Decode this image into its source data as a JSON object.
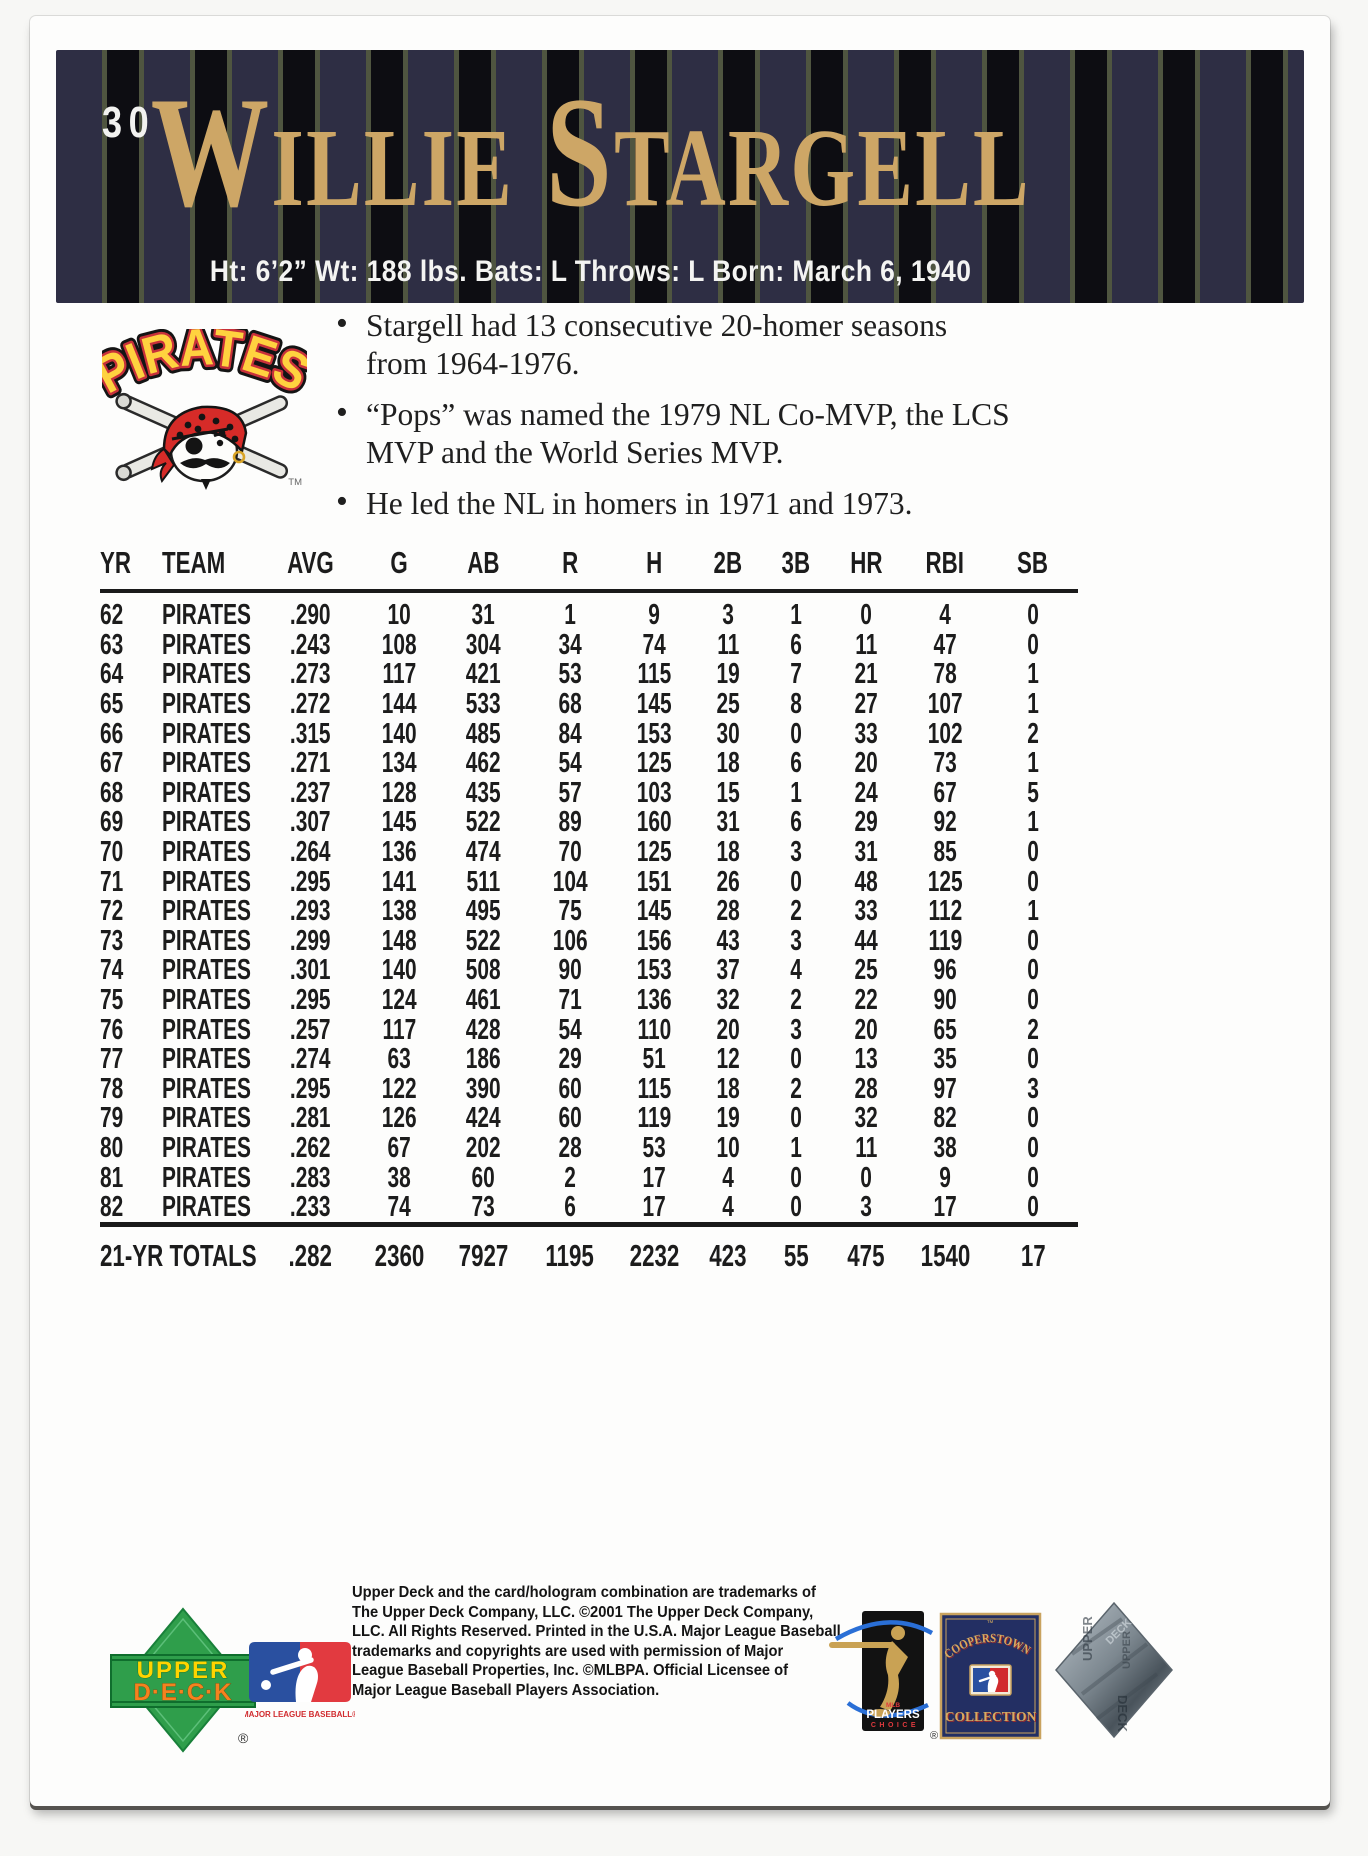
{
  "header": {
    "card_number": "30",
    "player_name": "Willie Stargell",
    "bio_line": "Ht: 6’2” Wt: 188 lbs. Bats: L Throws: L Born: March 6, 1940"
  },
  "team": {
    "logo_text": "PIRATES",
    "trademark": "TM"
  },
  "highlights": [
    "Stargell had 13 consecutive 20-homer seasons from 1964-1976.",
    "“Pops” was named the 1979 NL Co-MVP, the LCS MVP and the World Series MVP.",
    "He led the NL in homers in 1971 and 1973."
  ],
  "stats": {
    "columns": [
      "YR",
      "TEAM",
      "AVG",
      "G",
      "AB",
      "R",
      "H",
      "2B",
      "3B",
      "HR",
      "RBI",
      "SB"
    ],
    "rows": [
      [
        "62",
        "PIRATES",
        ".290",
        "10",
        "31",
        "1",
        "9",
        "3",
        "1",
        "0",
        "4",
        "0"
      ],
      [
        "63",
        "PIRATES",
        ".243",
        "108",
        "304",
        "34",
        "74",
        "11",
        "6",
        "11",
        "47",
        "0"
      ],
      [
        "64",
        "PIRATES",
        ".273",
        "117",
        "421",
        "53",
        "115",
        "19",
        "7",
        "21",
        "78",
        "1"
      ],
      [
        "65",
        "PIRATES",
        ".272",
        "144",
        "533",
        "68",
        "145",
        "25",
        "8",
        "27",
        "107",
        "1"
      ],
      [
        "66",
        "PIRATES",
        ".315",
        "140",
        "485",
        "84",
        "153",
        "30",
        "0",
        "33",
        "102",
        "2"
      ],
      [
        "67",
        "PIRATES",
        ".271",
        "134",
        "462",
        "54",
        "125",
        "18",
        "6",
        "20",
        "73",
        "1"
      ],
      [
        "68",
        "PIRATES",
        ".237",
        "128",
        "435",
        "57",
        "103",
        "15",
        "1",
        "24",
        "67",
        "5"
      ],
      [
        "69",
        "PIRATES",
        ".307",
        "145",
        "522",
        "89",
        "160",
        "31",
        "6",
        "29",
        "92",
        "1"
      ],
      [
        "70",
        "PIRATES",
        ".264",
        "136",
        "474",
        "70",
        "125",
        "18",
        "3",
        "31",
        "85",
        "0"
      ],
      [
        "71",
        "PIRATES",
        ".295",
        "141",
        "511",
        "104",
        "151",
        "26",
        "0",
        "48",
        "125",
        "0"
      ],
      [
        "72",
        "PIRATES",
        ".293",
        "138",
        "495",
        "75",
        "145",
        "28",
        "2",
        "33",
        "112",
        "1"
      ],
      [
        "73",
        "PIRATES",
        ".299",
        "148",
        "522",
        "106",
        "156",
        "43",
        "3",
        "44",
        "119",
        "0"
      ],
      [
        "74",
        "PIRATES",
        ".301",
        "140",
        "508",
        "90",
        "153",
        "37",
        "4",
        "25",
        "96",
        "0"
      ],
      [
        "75",
        "PIRATES",
        ".295",
        "124",
        "461",
        "71",
        "136",
        "32",
        "2",
        "22",
        "90",
        "0"
      ],
      [
        "76",
        "PIRATES",
        ".257",
        "117",
        "428",
        "54",
        "110",
        "20",
        "3",
        "20",
        "65",
        "2"
      ],
      [
        "77",
        "PIRATES",
        ".274",
        "63",
        "186",
        "29",
        "51",
        "12",
        "0",
        "13",
        "35",
        "0"
      ],
      [
        "78",
        "PIRATES",
        ".295",
        "122",
        "390",
        "60",
        "115",
        "18",
        "2",
        "28",
        "97",
        "3"
      ],
      [
        "79",
        "PIRATES",
        ".281",
        "126",
        "424",
        "60",
        "119",
        "19",
        "0",
        "32",
        "82",
        "0"
      ],
      [
        "80",
        "PIRATES",
        ".262",
        "67",
        "202",
        "28",
        "53",
        "10",
        "1",
        "11",
        "38",
        "0"
      ],
      [
        "81",
        "PIRATES",
        ".283",
        "38",
        "60",
        "2",
        "17",
        "4",
        "0",
        "0",
        "9",
        "0"
      ],
      [
        "82",
        "PIRATES",
        ".233",
        "74",
        "73",
        "6",
        "17",
        "4",
        "0",
        "3",
        "17",
        "0"
      ]
    ],
    "totals_label": "21-YR TOTALS",
    "totals": [
      ".282",
      "2360",
      "7927",
      "1195",
      "2232",
      "423",
      "55",
      "475",
      "1540",
      "17"
    ]
  },
  "footer": {
    "legal_lines": [
      "Upper Deck and the card/hologram combination are trademarks of",
      "The Upper Deck Company, LLC. ©2001 The Upper Deck Company,",
      "LLC. All Rights Reserved. Printed in the U.S.A. Major League Baseball",
      "trademarks and copyrights are used with permission of Major",
      "League Baseball Properties, Inc. ©MLBPA. Official Licensee of",
      "Major League Baseball Players Association."
    ],
    "upper_deck": {
      "line1": "UPPER",
      "line2": "D·E·C·K",
      "reg": "®"
    },
    "mlb": {
      "caption": "MAJOR LEAGUE BASEBALL®"
    },
    "players_choice": {
      "mlb": "MLB",
      "players": "PLAYERS",
      "choice": "CHOICE",
      "reg": "®"
    },
    "cooperstown": {
      "tm": "™",
      "top": "COOPERSTOWN",
      "bottom": "COLLECTION"
    },
    "hologram": {
      "word1": "UPPER",
      "word2": "DECK"
    }
  },
  "colors": {
    "name_gold": "#cda666",
    "stripe_navy": "#2e2e44",
    "stripe_black": "#0d0d12",
    "stripe_pin": "#4f5540",
    "pirates_yellow": "#ffd23f",
    "pirates_red": "#d62b28",
    "ud_green": "#2f9e4b",
    "mlb_blue": "#2a50a0",
    "mlb_red": "#e23a40",
    "cooperstown_navy": "#232f63"
  }
}
